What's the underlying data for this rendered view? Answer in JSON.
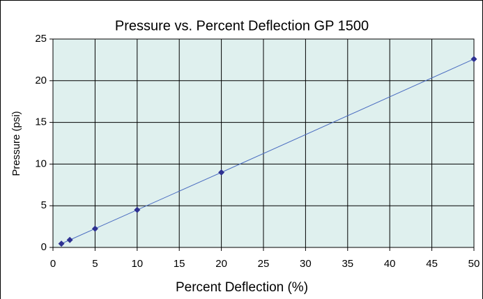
{
  "chart_data": {
    "type": "line",
    "title": "Pressure vs. Percent Deflection GP 1500",
    "x_label": "Percent Deflection (%)",
    "y_label": "Pressure (psi)",
    "x": [
      1,
      2,
      5,
      10,
      20,
      50
    ],
    "series": [
      {
        "name": "GP 1500",
        "color": "#2e3192",
        "line_color": "#4a6cc0",
        "values": [
          0.45,
          0.9,
          2.25,
          4.5,
          9,
          22.6
        ]
      }
    ],
    "xlim": [
      0,
      50
    ],
    "xticks": [
      0,
      5,
      10,
      15,
      20,
      25,
      30,
      35,
      40,
      45,
      50
    ],
    "ylim": [
      0,
      25
    ],
    "yticks": [
      0,
      5,
      10,
      15,
      20,
      25
    ],
    "grid": true,
    "plot_background": "#dff0ee"
  }
}
